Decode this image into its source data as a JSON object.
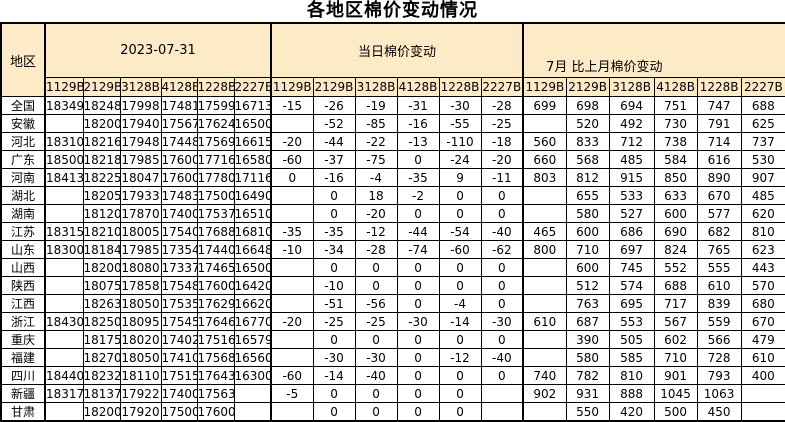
{
  "title": "各地区棉价变动情况",
  "table": {
    "corner_header": "地区",
    "groups": [
      {
        "label": "2023-07-31"
      },
      {
        "label": "当日棉价变动"
      },
      {
        "label": "7月 比上月棉价变动"
      }
    ],
    "col_headers": [
      "1129B",
      "2129B",
      "3128B",
      "4128B",
      "1228B",
      "2227B"
    ],
    "colors": {
      "header_bg": "#fdeac6",
      "negative_text": "#0070c0",
      "positive_text": "#ff0000",
      "price_text": "#000000"
    },
    "rows": [
      {
        "region": "全国",
        "prices": [
          "18349",
          "18248",
          "17998",
          "17481",
          "17599",
          "16713"
        ],
        "daily": [
          "-15",
          "-26",
          "-19",
          "-31",
          "-30",
          "-28"
        ],
        "monthly": [
          "699",
          "698",
          "694",
          "751",
          "747",
          "688"
        ]
      },
      {
        "region": "安徽",
        "prices": [
          "",
          "18200",
          "17940",
          "17567",
          "17624",
          "16500"
        ],
        "daily": [
          "",
          "-52",
          "-85",
          "-16",
          "-55",
          "-25"
        ],
        "monthly": [
          "",
          "520",
          "492",
          "730",
          "791",
          "625"
        ]
      },
      {
        "region": "河北",
        "prices": [
          "18310",
          "18216",
          "17948",
          "17448",
          "17569",
          "16615"
        ],
        "daily": [
          "-20",
          "-44",
          "-22",
          "-13",
          "-110",
          "-18"
        ],
        "monthly": [
          "560",
          "833",
          "712",
          "738",
          "714",
          "737"
        ]
      },
      {
        "region": "广东",
        "prices": [
          "18500",
          "18218",
          "17985",
          "17600",
          "17716",
          "16580"
        ],
        "daily": [
          "-60",
          "-37",
          "-75",
          "0",
          "-24",
          "-20"
        ],
        "monthly": [
          "660",
          "568",
          "485",
          "584",
          "616",
          "530"
        ]
      },
      {
        "region": "河南",
        "prices": [
          "18413",
          "18225",
          "18047",
          "17600",
          "17780",
          "17116"
        ],
        "daily": [
          "0",
          "-16",
          "-4",
          "-35",
          "9",
          "-11"
        ],
        "monthly": [
          "803",
          "812",
          "915",
          "850",
          "890",
          "907"
        ]
      },
      {
        "region": "湖北",
        "prices": [
          "",
          "18205",
          "17933",
          "17483",
          "17500",
          "16490"
        ],
        "daily": [
          "",
          "0",
          "18",
          "-2",
          "0",
          "0"
        ],
        "monthly": [
          "",
          "655",
          "533",
          "633",
          "670",
          "485"
        ]
      },
      {
        "region": "湖南",
        "prices": [
          "",
          "18120",
          "17870",
          "17400",
          "17537",
          "16510"
        ],
        "daily": [
          "",
          "0",
          "-20",
          "0",
          "0",
          "0"
        ],
        "monthly": [
          "",
          "580",
          "527",
          "600",
          "577",
          "620"
        ]
      },
      {
        "region": "江苏",
        "prices": [
          "18315",
          "18210",
          "18005",
          "17540",
          "17688",
          "16810"
        ],
        "daily": [
          "-35",
          "-35",
          "-12",
          "-44",
          "-54",
          "-40"
        ],
        "monthly": [
          "465",
          "600",
          "686",
          "690",
          "682",
          "810"
        ]
      },
      {
        "region": "山东",
        "prices": [
          "18300",
          "18184",
          "17985",
          "17354",
          "17440",
          "16648"
        ],
        "daily": [
          "-10",
          "-34",
          "-28",
          "-74",
          "-60",
          "-62"
        ],
        "monthly": [
          "800",
          "710",
          "697",
          "824",
          "765",
          "623"
        ]
      },
      {
        "region": "山西",
        "prices": [
          "",
          "18200",
          "18080",
          "17337",
          "17465",
          "16500"
        ],
        "daily": [
          "",
          "0",
          "0",
          "0",
          "0",
          "0"
        ],
        "monthly": [
          "",
          "600",
          "745",
          "552",
          "555",
          "443"
        ]
      },
      {
        "region": "陕西",
        "prices": [
          "",
          "18075",
          "17858",
          "17548",
          "17600",
          "16420"
        ],
        "daily": [
          "",
          "-10",
          "0",
          "0",
          "0",
          "0"
        ],
        "monthly": [
          "",
          "512",
          "574",
          "688",
          "610",
          "570"
        ]
      },
      {
        "region": "江西",
        "prices": [
          "",
          "18263",
          "18050",
          "17535",
          "17629",
          "16620"
        ],
        "daily": [
          "",
          "-51",
          "-56",
          "0",
          "-4",
          "0"
        ],
        "monthly": [
          "",
          "763",
          "695",
          "717",
          "839",
          "680"
        ]
      },
      {
        "region": "浙江",
        "prices": [
          "18430",
          "18250",
          "18095",
          "17545",
          "17646",
          "16770"
        ],
        "daily": [
          "-20",
          "-25",
          "-25",
          "-30",
          "-14",
          "-30"
        ],
        "monthly": [
          "610",
          "687",
          "553",
          "567",
          "559",
          "670"
        ]
      },
      {
        "region": "重庆",
        "prices": [
          "",
          "18175",
          "18020",
          "17402",
          "17516",
          "16579"
        ],
        "daily": [
          "",
          "0",
          "0",
          "0",
          "0",
          "0"
        ],
        "monthly": [
          "",
          "390",
          "505",
          "602",
          "566",
          "479"
        ]
      },
      {
        "region": "福建",
        "prices": [
          "",
          "18270",
          "18050",
          "17410",
          "17568",
          "16560"
        ],
        "daily": [
          "",
          "-30",
          "-30",
          "0",
          "-12",
          "-40"
        ],
        "monthly": [
          "",
          "580",
          "585",
          "710",
          "728",
          "610"
        ]
      },
      {
        "region": "四川",
        "prices": [
          "18440",
          "18232",
          "18110",
          "17515",
          "17643",
          "16300"
        ],
        "daily": [
          "-60",
          "-14",
          "-40",
          "0",
          "0",
          "0"
        ],
        "monthly": [
          "740",
          "782",
          "810",
          "901",
          "793",
          "400"
        ]
      },
      {
        "region": "新疆",
        "prices": [
          "18317",
          "18137",
          "17922",
          "17400",
          "17563",
          ""
        ],
        "daily": [
          "-5",
          "0",
          "0",
          "0",
          "0",
          ""
        ],
        "monthly": [
          "902",
          "931",
          "888",
          "1045",
          "1063",
          ""
        ]
      },
      {
        "region": "甘肃",
        "prices": [
          "",
          "18200",
          "17920",
          "17500",
          "17600",
          ""
        ],
        "daily": [
          "",
          "0",
          "0",
          "0",
          "0",
          ""
        ],
        "monthly": [
          "",
          "550",
          "420",
          "500",
          "450",
          ""
        ]
      }
    ]
  }
}
